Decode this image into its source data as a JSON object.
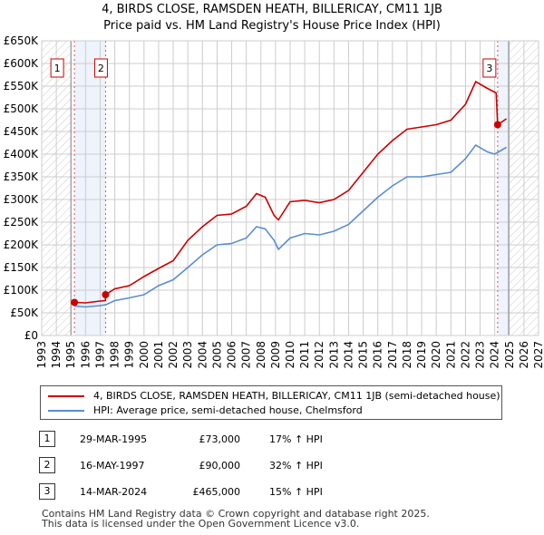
{
  "title": "4, BIRDS CLOSE, RAMSDEN HEATH, BILLERICAY, CM11 1JB",
  "subtitle": "Price paid vs. HM Land Registry's House Price Index (HPI)",
  "chart_data": {
    "type": "line",
    "xlim": [
      1993,
      2027
    ],
    "ylim": [
      0,
      650000
    ],
    "x_ticks": [
      "1993",
      "1994",
      "1995",
      "1996",
      "1997",
      "1998",
      "1999",
      "2000",
      "2001",
      "2002",
      "2003",
      "2004",
      "2005",
      "2006",
      "2007",
      "2008",
      "2009",
      "2010",
      "2011",
      "2012",
      "2013",
      "2014",
      "2015",
      "2016",
      "2017",
      "2018",
      "2019",
      "2020",
      "2021",
      "2022",
      "2023",
      "2024",
      "2025",
      "2026",
      "2027"
    ],
    "y_ticks": [
      {
        "v": 0,
        "label": "£0"
      },
      {
        "v": 50000,
        "label": "£50K"
      },
      {
        "v": 100000,
        "label": "£100K"
      },
      {
        "v": 150000,
        "label": "£150K"
      },
      {
        "v": 200000,
        "label": "£200K"
      },
      {
        "v": 250000,
        "label": "£250K"
      },
      {
        "v": 300000,
        "label": "£300K"
      },
      {
        "v": 350000,
        "label": "£350K"
      },
      {
        "v": 400000,
        "label": "£400K"
      },
      {
        "v": 450000,
        "label": "£450K"
      },
      {
        "v": 500000,
        "label": "£500K"
      },
      {
        "v": 550000,
        "label": "£550K"
      },
      {
        "v": 600000,
        "label": "£600K"
      },
      {
        "v": 650000,
        "label": "£650K"
      }
    ],
    "grid": true,
    "series": [
      {
        "name": "4, BIRDS CLOSE, RAMSDEN HEATH, BILLERICAY, CM11 1JB (semi-detached house)",
        "color": "#cc0000",
        "x": [
          1995.24,
          1996,
          1997.0,
          1997.36,
          1997.37,
          1998,
          1999,
          2000,
          2001,
          2002,
          2003,
          2004,
          2005,
          2006,
          2007,
          2007.7,
          2008.3,
          2008.9,
          2009.2,
          2010,
          2011,
          2012,
          2013,
          2014,
          2015,
          2016,
          2017,
          2018,
          2019,
          2020,
          2021,
          2022,
          2022.7,
          2023.5,
          2024.1,
          2024.2,
          2024.8
        ],
        "y": [
          73000,
          72000,
          76000,
          77000,
          90000,
          103000,
          110000,
          130000,
          148000,
          165000,
          210000,
          240000,
          265000,
          268000,
          285000,
          313000,
          305000,
          265000,
          255000,
          295000,
          298000,
          293000,
          300000,
          320000,
          360000,
          400000,
          430000,
          455000,
          460000,
          465000,
          475000,
          510000,
          560000,
          545000,
          535000,
          465000,
          478000
        ]
      },
      {
        "name": "HPI: Average price, semi-detached house, Chelmsford",
        "color": "#5b8dd0",
        "x": [
          1995.24,
          1996,
          1997,
          1997.4,
          1998,
          1999,
          2000,
          2001,
          2002,
          2003,
          2004,
          2005,
          2006,
          2007,
          2007.7,
          2008.3,
          2008.9,
          2009.2,
          2010,
          2011,
          2012,
          2013,
          2014,
          2015,
          2016,
          2017,
          2018,
          2019,
          2020,
          2021,
          2022,
          2022.7,
          2023.5,
          2024,
          2024.8
        ],
        "y": [
          65000,
          63000,
          66000,
          68000,
          77000,
          83000,
          90000,
          110000,
          123000,
          150000,
          178000,
          200000,
          203000,
          215000,
          240000,
          235000,
          210000,
          190000,
          215000,
          225000,
          222000,
          230000,
          245000,
          275000,
          305000,
          330000,
          350000,
          350000,
          355000,
          360000,
          390000,
          420000,
          405000,
          400000,
          415000
        ]
      }
    ],
    "sales": [
      {
        "n": "1",
        "x": 1995.24,
        "y": 73000
      },
      {
        "n": "2",
        "x": 1997.37,
        "y": 90000
      },
      {
        "n": "3",
        "x": 2024.2,
        "y": 465000
      }
    ],
    "legend": "below"
  },
  "table": [
    {
      "n": "1",
      "date": "29-MAR-1995",
      "price": "£73,000",
      "hpi": "17% ↑ HPI"
    },
    {
      "n": "2",
      "date": "16-MAY-1997",
      "price": "£90,000",
      "hpi": "32% ↑ HPI"
    },
    {
      "n": "3",
      "date": "14-MAR-2024",
      "price": "£465,000",
      "hpi": "15% ↑ HPI"
    }
  ],
  "footer": [
    "Contains HM Land Registry data © Crown copyright and database right 2025.",
    "This data is licensed under the Open Government Licence v3.0."
  ]
}
